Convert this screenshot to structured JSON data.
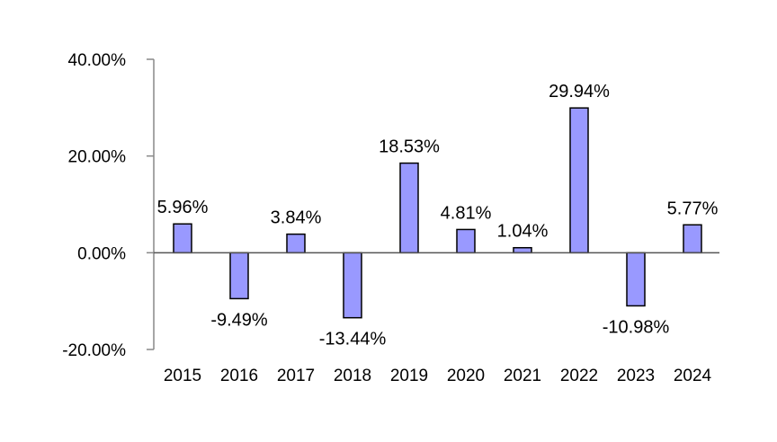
{
  "chart_data": {
    "type": "bar",
    "title": "",
    "xlabel": "",
    "ylabel": "",
    "categories": [
      "2015",
      "2016",
      "2017",
      "2018",
      "2019",
      "2020",
      "2021",
      "2022",
      "2023",
      "2024"
    ],
    "values": [
      5.96,
      -9.49,
      3.84,
      -13.44,
      18.53,
      4.81,
      1.04,
      29.94,
      -10.98,
      5.77
    ],
    "value_labels": [
      "5.96%",
      "-9.49%",
      "3.84%",
      "-13.44%",
      "18.53%",
      "4.81%",
      "1.04%",
      "29.94%",
      "-10.98%",
      "5.77%"
    ],
    "ylim": [
      -20,
      40
    ],
    "yticks": [
      40,
      20,
      0,
      -20
    ],
    "ytick_labels": [
      "40.00%",
      "20.00%",
      "0.00%",
      "-20.00%"
    ],
    "grid": false,
    "legend": "none",
    "colors": {
      "bar_fill": "#9999ff",
      "bar_stroke": "#000000",
      "axis": "#888888",
      "zero_line": "#555555"
    }
  }
}
